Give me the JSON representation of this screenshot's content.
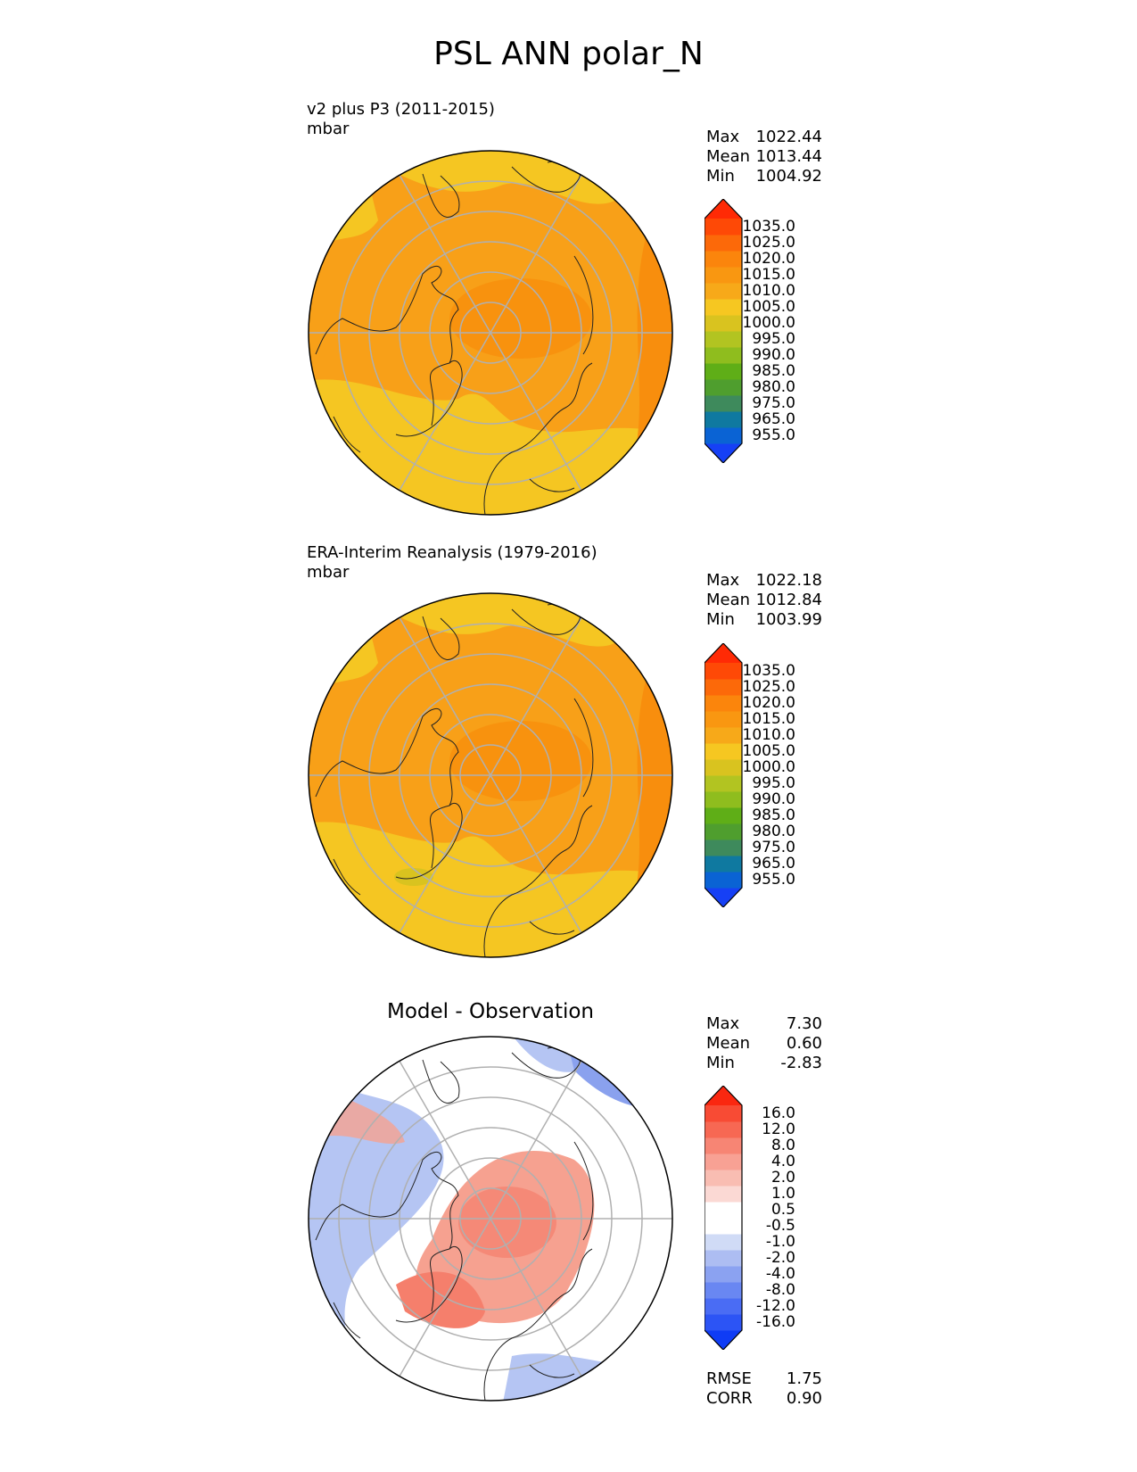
{
  "figure_title": "PSL ANN polar_N",
  "panels": [
    {
      "title": "v2 plus P3 (2011-2015)",
      "units": "mbar",
      "stats": {
        "max_label": "Max",
        "max": "1022.44",
        "mean_label": "Mean",
        "mean": "1013.44",
        "min_label": "Min",
        "min": "1004.92"
      },
      "colorbar": {
        "colors": [
          "#1640f5",
          "#0a63d4",
          "#0f79a0",
          "#3e8a5c",
          "#4f9e2e",
          "#5fae17",
          "#8fbd1e",
          "#b2c421",
          "#d9c31f",
          "#f6c721",
          "#f7a919",
          "#f99711",
          "#fb850c",
          "#fc6909",
          "#fe4906",
          "#ff2a05"
        ],
        "labels": [
          "1035.0",
          "1025.0",
          "1020.0",
          "1015.0",
          "1010.0",
          "1005.0",
          "1000.0",
          "995.0",
          "990.0",
          "985.0",
          "980.0",
          "975.0",
          "965.0",
          "955.0"
        ]
      },
      "fill_colors": {
        "base": "#f8a018",
        "light": "#f5c622",
        "dark": "#f88e0d"
      }
    },
    {
      "title": "ERA-Interim Reanalysis (1979-2016)",
      "units": "mbar",
      "stats": {
        "max_label": "Max",
        "max": "1022.18",
        "mean_label": "Mean",
        "mean": "1012.84",
        "min_label": "Min",
        "min": "1003.99"
      },
      "colorbar": {
        "colors": [
          "#1640f5",
          "#0a63d4",
          "#0f79a0",
          "#3e8a5c",
          "#4f9e2e",
          "#5fae17",
          "#8fbd1e",
          "#b2c421",
          "#d9c31f",
          "#f6c721",
          "#f7a919",
          "#f99711",
          "#fb850c",
          "#fc6909",
          "#fe4906",
          "#ff2a05"
        ],
        "labels": [
          "1035.0",
          "1025.0",
          "1020.0",
          "1015.0",
          "1010.0",
          "1005.0",
          "1000.0",
          "995.0",
          "990.0",
          "985.0",
          "980.0",
          "975.0",
          "965.0",
          "955.0"
        ]
      },
      "fill_colors": {
        "base": "#f8a018",
        "light": "#f5c622",
        "dark": "#f88e0d"
      }
    },
    {
      "title": "Model - Observation",
      "stats": {
        "max_label": "Max",
        "max": "7.30",
        "mean_label": "Mean",
        "mean": "0.60",
        "min_label": "Min",
        "min": "-2.83"
      },
      "colorbar": {
        "colors": [
          "#0f3cf5",
          "#2c54f5",
          "#4a6cf4",
          "#6987f2",
          "#8ba2f1",
          "#adbdf2",
          "#d0dbf6",
          "#ffffff",
          "#ffffff",
          "#fbd9d4",
          "#f9bdb2",
          "#f8a194",
          "#f78574",
          "#f76853",
          "#f84b34",
          "#fa2710"
        ],
        "labels": [
          "16.0",
          "12.0",
          "8.0",
          "4.0",
          "2.0",
          "1.0",
          "0.5",
          "-0.5",
          "-1.0",
          "-2.0",
          "-4.0",
          "-8.0",
          "-12.0",
          "-16.0"
        ]
      },
      "fill_colors": {
        "base": "#ffffff",
        "pos": "#f6a190",
        "pos_strong": "#f57f6c",
        "neg": "#b5c5f3",
        "neg_strong": "#8aa1ee"
      },
      "rmse_label": "RMSE",
      "rmse": "1.75",
      "corr_label": "CORR",
      "corr": "0.90"
    }
  ]
}
